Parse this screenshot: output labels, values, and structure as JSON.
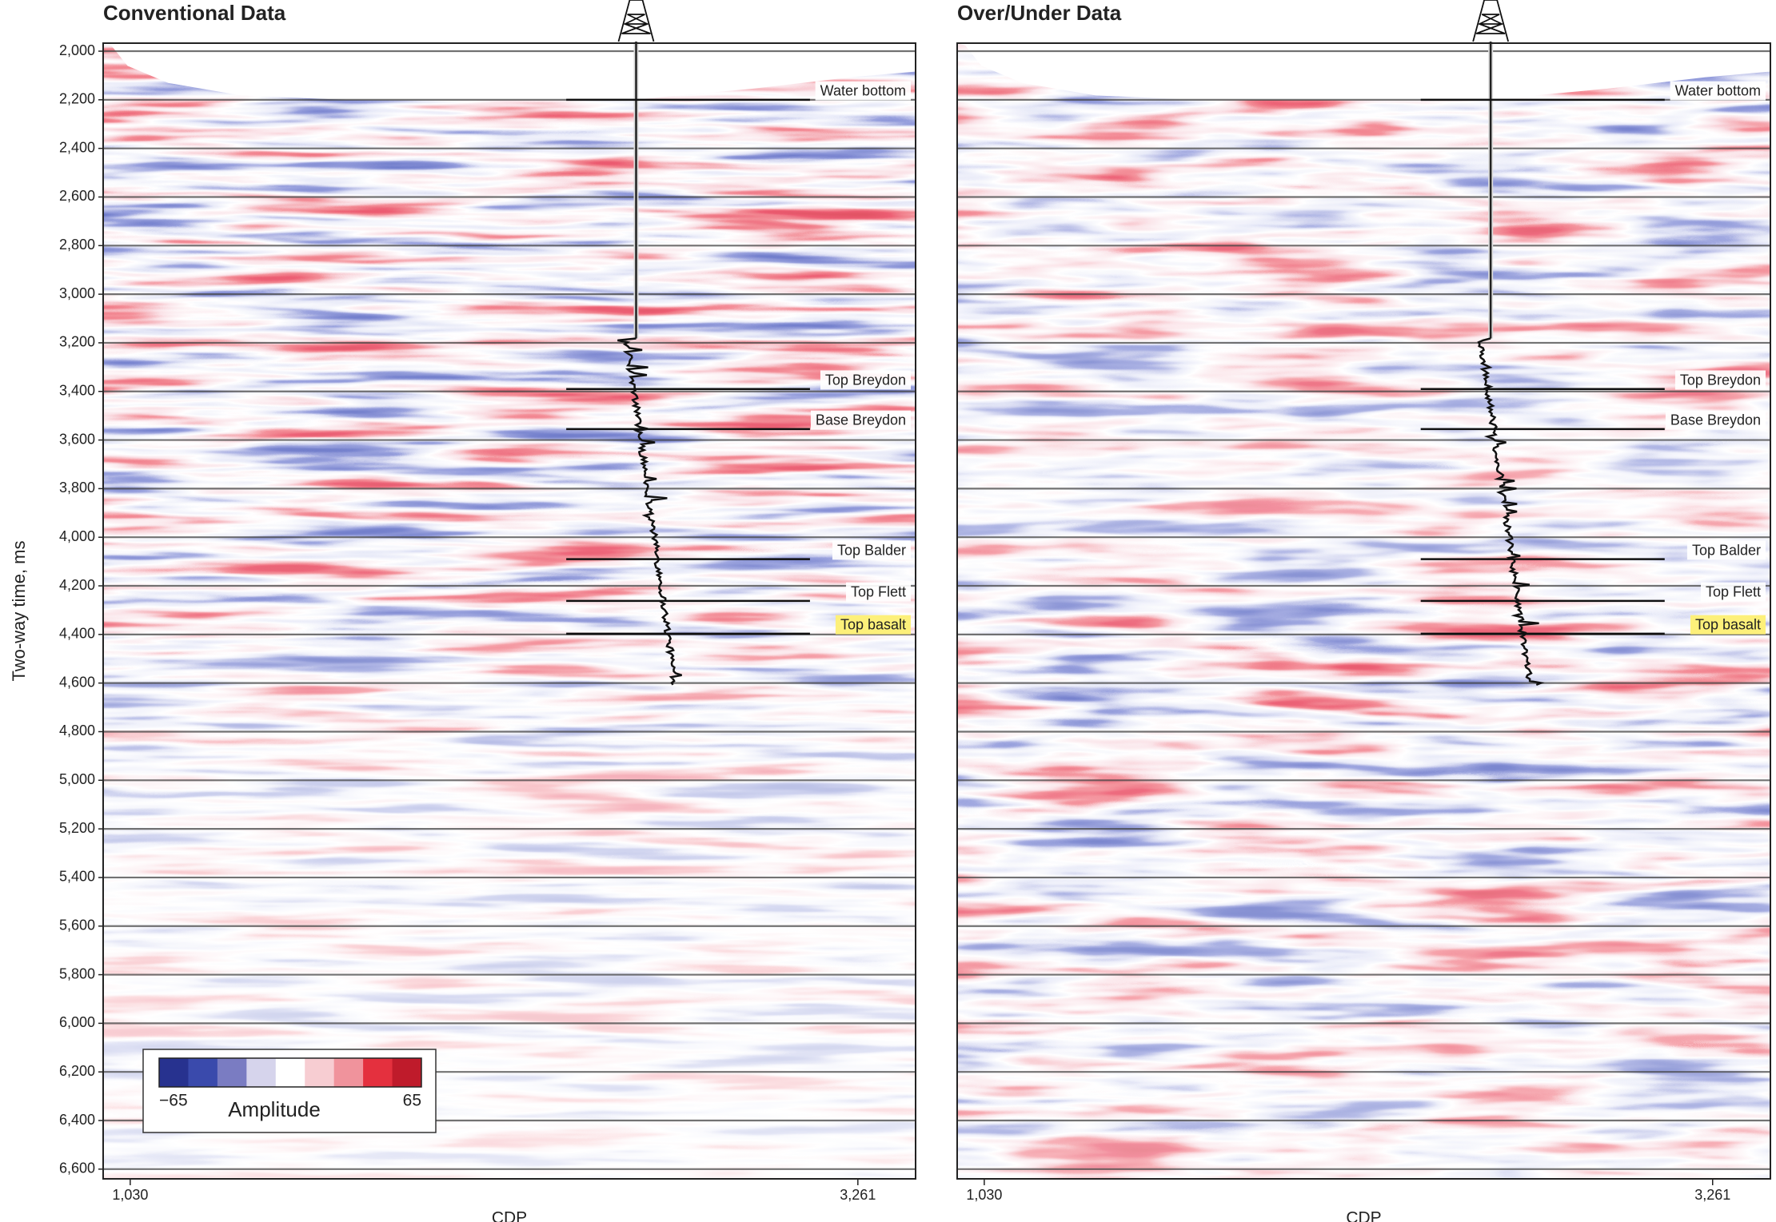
{
  "chart_data": [
    {
      "type": "seismic",
      "title": "Conventional Data",
      "ylabel": "Two-way time, ms",
      "xlabel": "CDP",
      "ylim": [
        6640,
        1967
      ],
      "yticks": [
        {
          "value": 2000,
          "label": "2,000"
        },
        {
          "value": 2200,
          "label": "2,200"
        },
        {
          "value": 2400,
          "label": "2,400"
        },
        {
          "value": 2600,
          "label": "2,600"
        },
        {
          "value": 2800,
          "label": "2,800"
        },
        {
          "value": 3000,
          "label": "3,000"
        },
        {
          "value": 3200,
          "label": "3,200"
        },
        {
          "value": 3400,
          "label": "3,400"
        },
        {
          "value": 3600,
          "label": "3,600"
        },
        {
          "value": 3800,
          "label": "3,800"
        },
        {
          "value": 4000,
          "label": "4,000"
        },
        {
          "value": 4200,
          "label": "4,200"
        },
        {
          "value": 4400,
          "label": "4,400"
        },
        {
          "value": 4600,
          "label": "4,600"
        },
        {
          "value": 4800,
          "label": "4,800"
        },
        {
          "value": 5000,
          "label": "5,000"
        },
        {
          "value": 5200,
          "label": "5,200"
        },
        {
          "value": 5400,
          "label": "5,400"
        },
        {
          "value": 5600,
          "label": "5,600"
        },
        {
          "value": 5800,
          "label": "5,800"
        },
        {
          "value": 6000,
          "label": "6,000"
        },
        {
          "value": 6200,
          "label": "6,200"
        },
        {
          "value": 6400,
          "label": "6,400"
        },
        {
          "value": 6600,
          "label": "6,600"
        }
      ],
      "xlim": [
        947,
        3438
      ],
      "xticks": [
        {
          "value": 1030,
          "label": "1,030"
        },
        {
          "value": 3261,
          "label": "3,261"
        }
      ],
      "horizons": [
        {
          "label": "Water bottom",
          "value": 2200
        },
        {
          "label": "Top Breydon",
          "value": 3390
        },
        {
          "label": "Base Breydon",
          "value": 3555
        },
        {
          "label": "Top Balder",
          "value": 4090
        },
        {
          "label": "Top Flett",
          "value": 4262
        },
        {
          "label": "Top basalt",
          "value": 4397,
          "highlight": "#fdf07a"
        }
      ],
      "colorbar": {
        "label": "Amplitude",
        "range": [
          -65,
          65
        ],
        "ticks": [
          {
            "value": -65,
            "label": "−65"
          },
          65
        ],
        "colors": [
          "#27328f",
          "#3a4aac",
          "#7a7cc2",
          "#d6d4ec",
          "#ffffff",
          "#f7cdd2",
          "#f0939c",
          "#e4303e",
          "#bf1b2b"
        ]
      }
    },
    {
      "type": "seismic",
      "title": "Over/Under Data",
      "xlabel": "CDP",
      "ylim": [
        6640,
        1967
      ],
      "xlim": [
        947,
        3438
      ],
      "xticks": [
        {
          "value": 1030,
          "label": "1,030"
        },
        {
          "value": 3261,
          "label": "3,261"
        }
      ],
      "horizons": [
        {
          "label": "Water bottom",
          "value": 2200
        },
        {
          "label": "Top Breydon",
          "value": 3390
        },
        {
          "label": "Base Breydon",
          "value": 3555
        },
        {
          "label": "Top Balder",
          "value": 4090
        },
        {
          "label": "Top Flett",
          "value": 4262
        },
        {
          "label": "Top basalt",
          "value": 4397,
          "highlight": "#fdf07a"
        }
      ]
    }
  ]
}
